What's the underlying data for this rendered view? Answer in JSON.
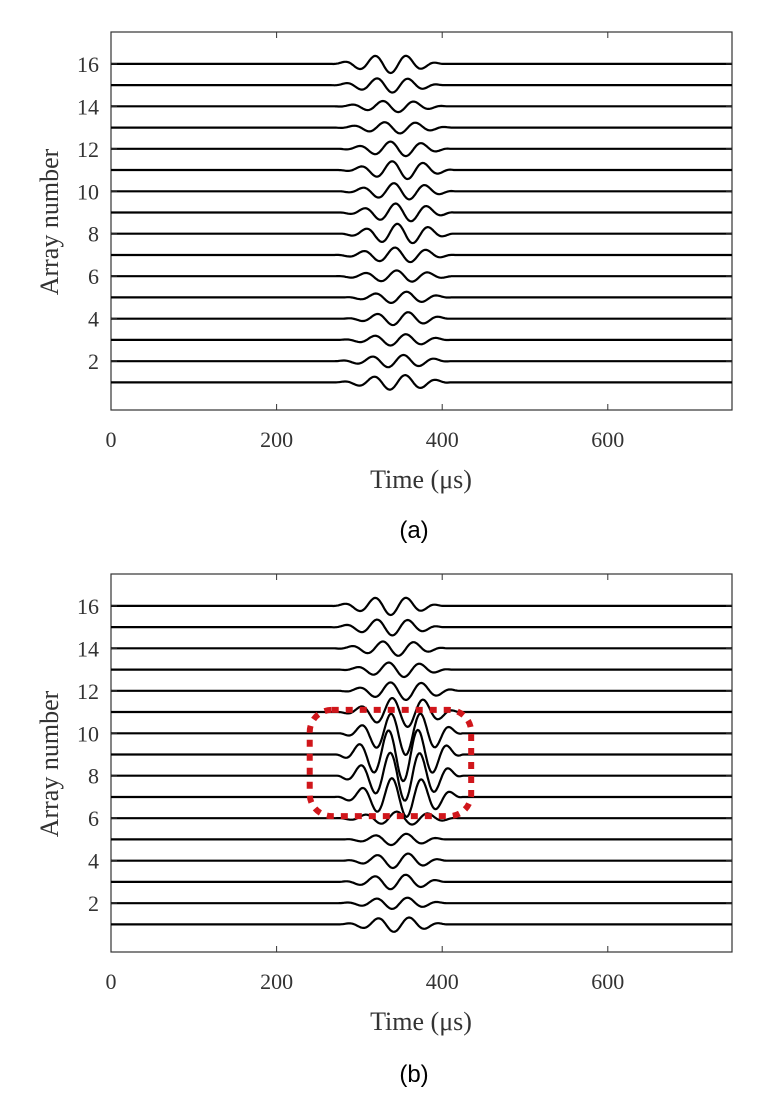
{
  "colors": {
    "axis": "#333333",
    "trace": "#000000",
    "highlight": "#d0161b"
  },
  "chart_data": [
    {
      "type": "line",
      "panel_label": "(a)",
      "title": "",
      "xlabel": "Time (μs)",
      "ylabel": "Array number",
      "xlim": [
        0,
        750
      ],
      "ylim": [
        -0.3,
        17.5
      ],
      "xticks": [
        0,
        200,
        400,
        600
      ],
      "yticks": [
        2,
        4,
        6,
        8,
        10,
        12,
        14,
        16
      ],
      "series_description": "16 stacked waveform traces, baselines at array numbers 1-16",
      "series": [
        {
          "name": "1",
          "baseline": 1,
          "start": 270,
          "end": 410,
          "amp": 0.45,
          "period": 38
        },
        {
          "name": "2",
          "baseline": 2,
          "start": 270,
          "end": 410,
          "amp": 0.38,
          "period": 38
        },
        {
          "name": "3",
          "baseline": 3,
          "start": 275,
          "end": 410,
          "amp": 0.35,
          "period": 38
        },
        {
          "name": "4",
          "baseline": 4,
          "start": 280,
          "end": 410,
          "amp": 0.4,
          "period": 38
        },
        {
          "name": "5",
          "baseline": 5,
          "start": 280,
          "end": 410,
          "amp": 0.35,
          "period": 38
        },
        {
          "name": "6",
          "baseline": 6,
          "start": 270,
          "end": 415,
          "amp": 0.35,
          "period": 38
        },
        {
          "name": "7",
          "baseline": 7,
          "start": 270,
          "end": 415,
          "amp": 0.45,
          "period": 38
        },
        {
          "name": "8",
          "baseline": 8,
          "start": 275,
          "end": 415,
          "amp": 0.6,
          "period": 38
        },
        {
          "name": "9",
          "baseline": 9,
          "start": 275,
          "end": 415,
          "amp": 0.55,
          "period": 38
        },
        {
          "name": "10",
          "baseline": 10,
          "start": 275,
          "end": 415,
          "amp": 0.5,
          "period": 38
        },
        {
          "name": "11",
          "baseline": 11,
          "start": 275,
          "end": 415,
          "amp": 0.55,
          "period": 38
        },
        {
          "name": "12",
          "baseline": 12,
          "start": 275,
          "end": 410,
          "amp": 0.45,
          "period": 38
        },
        {
          "name": "13",
          "baseline": 13,
          "start": 270,
          "end": 410,
          "amp": 0.35,
          "period": 38
        },
        {
          "name": "14",
          "baseline": 14,
          "start": 270,
          "end": 405,
          "amp": 0.35,
          "period": 38
        },
        {
          "name": "15",
          "baseline": 15,
          "start": 265,
          "end": 400,
          "amp": 0.45,
          "period": 38
        },
        {
          "name": "16",
          "baseline": 16,
          "start": 265,
          "end": 400,
          "amp": 0.55,
          "period": 38
        }
      ]
    },
    {
      "type": "line",
      "panel_label": "(b)",
      "title": "",
      "xlabel": "Time (μs)",
      "ylabel": "Array number",
      "xlim": [
        0,
        750
      ],
      "ylim": [
        -0.3,
        17.5
      ],
      "xticks": [
        0,
        200,
        400,
        600
      ],
      "yticks": [
        2,
        4,
        6,
        8,
        10,
        12,
        14,
        16
      ],
      "series_description": "16 stacked waveform traces; arrays 7-10 show enlarged amplitude (highlighted)",
      "highlight_region": {
        "x": [
          240,
          435
        ],
        "y": [
          6.1,
          11.1
        ],
        "style": "red dotted rounded box"
      },
      "series": [
        {
          "name": "1",
          "baseline": 1,
          "start": 275,
          "end": 405,
          "amp": 0.45,
          "period": 38
        },
        {
          "name": "2",
          "baseline": 2,
          "start": 275,
          "end": 405,
          "amp": 0.35,
          "period": 38
        },
        {
          "name": "3",
          "baseline": 3,
          "start": 275,
          "end": 405,
          "amp": 0.45,
          "period": 38
        },
        {
          "name": "4",
          "baseline": 4,
          "start": 280,
          "end": 405,
          "amp": 0.45,
          "period": 38
        },
        {
          "name": "5",
          "baseline": 5,
          "start": 280,
          "end": 405,
          "amp": 0.35,
          "period": 38
        },
        {
          "name": "6",
          "baseline": 6,
          "start": 270,
          "end": 420,
          "amp": 0.4,
          "period": 38
        },
        {
          "name": "7",
          "baseline": 7,
          "start": 270,
          "end": 425,
          "amp": 1.2,
          "period": 36
        },
        {
          "name": "8",
          "baseline": 8,
          "start": 270,
          "end": 425,
          "amp": 1.5,
          "period": 36
        },
        {
          "name": "9",
          "baseline": 9,
          "start": 270,
          "end": 425,
          "amp": 1.6,
          "period": 36
        },
        {
          "name": "10",
          "baseline": 10,
          "start": 275,
          "end": 425,
          "amp": 1.3,
          "period": 36
        },
        {
          "name": "11",
          "baseline": 11,
          "start": 275,
          "end": 420,
          "amp": 0.9,
          "period": 38
        },
        {
          "name": "12",
          "baseline": 12,
          "start": 275,
          "end": 420,
          "amp": 0.55,
          "period": 38
        },
        {
          "name": "13",
          "baseline": 13,
          "start": 275,
          "end": 410,
          "amp": 0.45,
          "period": 38
        },
        {
          "name": "14",
          "baseline": 14,
          "start": 270,
          "end": 405,
          "amp": 0.45,
          "period": 38
        },
        {
          "name": "15",
          "baseline": 15,
          "start": 265,
          "end": 400,
          "amp": 0.5,
          "period": 38
        },
        {
          "name": "16",
          "baseline": 16,
          "start": 265,
          "end": 400,
          "amp": 0.55,
          "period": 38
        }
      ]
    }
  ]
}
